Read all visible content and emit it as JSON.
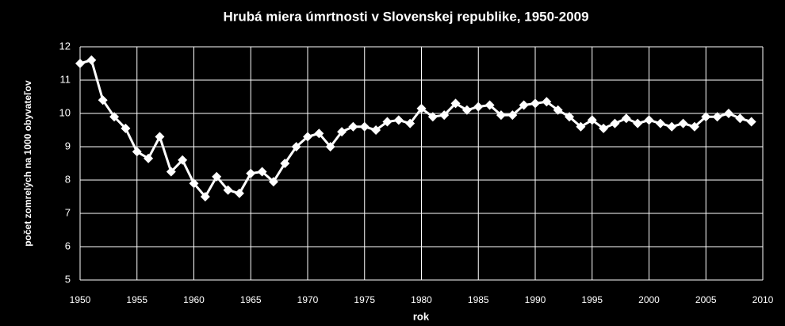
{
  "chart_data": {
    "type": "line",
    "title": "Hrubá miera úmrtnosti v Slovenskej republike, 1950-2009",
    "x_label": "rok",
    "y_label": "počet zomrelých na 1000 obyvateľov",
    "x": [
      1950,
      1951,
      1952,
      1953,
      1954,
      1955,
      1956,
      1957,
      1958,
      1959,
      1960,
      1961,
      1962,
      1963,
      1964,
      1965,
      1966,
      1967,
      1968,
      1969,
      1970,
      1971,
      1972,
      1973,
      1974,
      1975,
      1976,
      1977,
      1978,
      1979,
      1980,
      1981,
      1982,
      1983,
      1984,
      1985,
      1986,
      1987,
      1988,
      1989,
      1990,
      1991,
      1992,
      1993,
      1994,
      1995,
      1996,
      1997,
      1998,
      1999,
      2000,
      2001,
      2002,
      2003,
      2004,
      2005,
      2006,
      2007,
      2008,
      2009
    ],
    "series": [
      {
        "name": "rok",
        "color": "#ffffff",
        "values": [
          11.5,
          11.6,
          10.4,
          9.9,
          9.55,
          8.85,
          8.65,
          9.3,
          8.25,
          8.6,
          7.9,
          7.5,
          8.1,
          7.7,
          7.6,
          8.2,
          8.25,
          7.95,
          8.5,
          9.0,
          9.3,
          9.4,
          9.0,
          9.45,
          9.6,
          9.6,
          9.5,
          9.75,
          9.8,
          9.7,
          10.15,
          9.9,
          9.95,
          10.3,
          10.1,
          10.2,
          10.25,
          9.95,
          9.95,
          10.25,
          10.3,
          10.35,
          10.1,
          9.9,
          9.6,
          9.8,
          9.55,
          9.7,
          9.85,
          9.7,
          9.8,
          9.7,
          9.6,
          9.7,
          9.6,
          9.9,
          9.9,
          10.0,
          9.85,
          9.75
        ]
      }
    ],
    "xlim": [
      1950,
      2010
    ],
    "xticks": [
      1950,
      1955,
      1960,
      1965,
      1970,
      1975,
      1980,
      1985,
      1990,
      1995,
      2000,
      2005,
      2010
    ],
    "ylim": [
      5,
      12
    ],
    "yticks": [
      5,
      6,
      7,
      8,
      9,
      10,
      11,
      12
    ],
    "grid": true
  }
}
